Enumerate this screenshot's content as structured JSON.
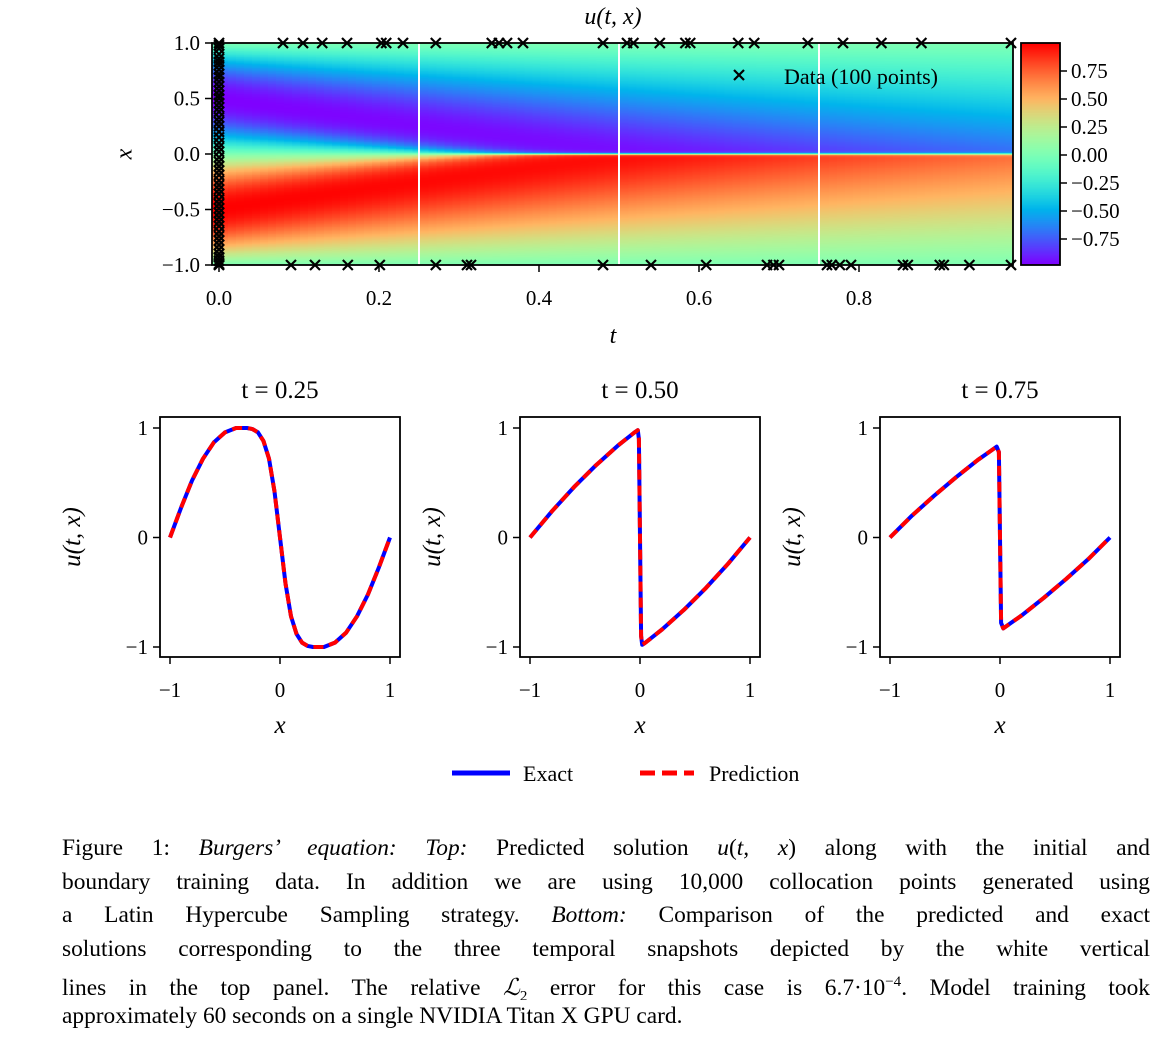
{
  "chart_data": [
    {
      "type": "heatmap",
      "title": "u(t, x)",
      "xlabel": "t",
      "ylabel": "x",
      "xlim": [
        0,
        0.99
      ],
      "ylim": [
        -1,
        1
      ],
      "xticks": [
        "0.0",
        "0.2",
        "0.4",
        "0.6",
        "0.8"
      ],
      "yticks": [
        "1.0",
        "0.5",
        "0.0",
        "−0.5",
        "−1.0"
      ],
      "colormap": "rainbow",
      "colorbar": {
        "range": [
          -1,
          1
        ],
        "ticks": [
          "0.75",
          "0.50",
          "0.25",
          "0.00",
          "−0.25",
          "−0.50",
          "−0.75"
        ]
      },
      "white_lines_t": [
        0.25,
        0.5,
        0.75
      ],
      "legend": {
        "label": "Data (100 points)",
        "position": "top-right"
      },
      "data_points": {
        "boundary_top_x1_t": [
          0,
          0.08,
          0.105,
          0.129,
          0.16,
          0.203,
          0.209,
          0.23,
          0.271,
          0.341,
          0.35,
          0.36,
          0.38,
          0.48,
          0.51,
          0.518,
          0.551,
          0.583,
          0.589,
          0.649,
          0.669,
          0.736,
          0.78,
          0.828,
          0.878,
          0.99
        ],
        "boundary_bottom_xm1_t": [
          0,
          0.09,
          0.12,
          0.161,
          0.201,
          0.271,
          0.31,
          0.315,
          0.48,
          0.54,
          0.609,
          0.685,
          0.693,
          0.7,
          0.76,
          0.766,
          0.776,
          0.79,
          0.855,
          0.861,
          0.901,
          0.906,
          0.938,
          0.99
        ],
        "initial_t0_x": [
          0.98,
          0.95,
          0.9,
          0.86,
          0.83,
          0.8,
          0.76,
          0.72,
          0.69,
          0.65,
          0.61,
          0.57,
          0.53,
          0.5,
          0.46,
          0.42,
          0.38,
          0.33,
          0.29,
          0.25,
          0.2,
          0.15,
          0.1,
          0.06,
          0.02,
          -0.03,
          -0.07,
          -0.11,
          -0.15,
          -0.19,
          -0.24,
          -0.28,
          -0.32,
          -0.36,
          -0.41,
          -0.45,
          -0.49,
          -0.53,
          -0.57,
          -0.61,
          -0.65,
          -0.7,
          -0.74,
          -0.78,
          -0.82,
          -0.86,
          -0.9,
          -0.93,
          -0.96,
          -0.99
        ]
      }
    },
    {
      "type": "line",
      "title": "t = 0.25",
      "xlabel": "x",
      "ylabel": "u(t, x)",
      "xlim": [
        -1.1,
        1.1
      ],
      "ylim": [
        -1.1,
        1.1
      ],
      "xticks": [
        "−1",
        "0",
        "1"
      ],
      "yticks": [
        "1",
        "0",
        "−1"
      ],
      "x": [
        -1,
        -0.9,
        -0.8,
        -0.7,
        -0.6,
        -0.5,
        -0.4,
        -0.3,
        -0.25,
        -0.2,
        -0.15,
        -0.1,
        -0.05,
        0,
        0.05,
        0.1,
        0.15,
        0.2,
        0.25,
        0.3,
        0.4,
        0.5,
        0.6,
        0.7,
        0.8,
        0.9,
        1
      ],
      "series": [
        {
          "name": "Exact",
          "values": [
            0,
            0.27,
            0.52,
            0.72,
            0.87,
            0.96,
            1.0,
            1.0,
            0.99,
            0.96,
            0.88,
            0.72,
            0.42,
            0,
            -0.42,
            -0.72,
            -0.88,
            -0.96,
            -0.99,
            -1.0,
            -1.0,
            -0.96,
            -0.87,
            -0.72,
            -0.52,
            -0.27,
            0
          ]
        },
        {
          "name": "Prediction",
          "values": [
            0,
            0.27,
            0.52,
            0.72,
            0.87,
            0.96,
            1.0,
            1.0,
            0.99,
            0.96,
            0.88,
            0.72,
            0.42,
            0,
            -0.42,
            -0.72,
            -0.88,
            -0.96,
            -0.99,
            -1.0,
            -1.0,
            -0.96,
            -0.87,
            -0.72,
            -0.52,
            -0.27,
            0
          ]
        }
      ]
    },
    {
      "type": "line",
      "title": "t = 0.50",
      "xlabel": "x",
      "ylabel": "u(t, x)",
      "xlim": [
        -1.1,
        1.1
      ],
      "ylim": [
        -1.1,
        1.1
      ],
      "xticks": [
        "−1",
        "0",
        "1"
      ],
      "yticks": [
        "1",
        "0",
        "−1"
      ],
      "x": [
        -1,
        -0.8,
        -0.6,
        -0.4,
        -0.2,
        -0.1,
        -0.05,
        -0.02,
        -0.01,
        0,
        0.01,
        0.02,
        0.05,
        0.1,
        0.2,
        0.4,
        0.6,
        0.8,
        1
      ],
      "series": [
        {
          "name": "Exact",
          "values": [
            0,
            0.24,
            0.46,
            0.66,
            0.84,
            0.92,
            0.96,
            0.98,
            0.9,
            0,
            -0.9,
            -0.98,
            -0.96,
            -0.92,
            -0.84,
            -0.66,
            -0.46,
            -0.24,
            0
          ]
        },
        {
          "name": "Prediction",
          "values": [
            0,
            0.24,
            0.46,
            0.66,
            0.84,
            0.92,
            0.96,
            0.98,
            0.9,
            0,
            -0.9,
            -0.98,
            -0.96,
            -0.92,
            -0.84,
            -0.66,
            -0.46,
            -0.24,
            0
          ]
        }
      ]
    },
    {
      "type": "line",
      "title": "t = 0.75",
      "xlabel": "x",
      "ylabel": "u(t, x)",
      "xlim": [
        -1.1,
        1.1
      ],
      "ylim": [
        -1.1,
        1.1
      ],
      "xticks": [
        "−1",
        "0",
        "1"
      ],
      "yticks": [
        "1",
        "0",
        "−1"
      ],
      "x": [
        -1,
        -0.8,
        -0.6,
        -0.4,
        -0.2,
        -0.1,
        -0.03,
        -0.01,
        0,
        0.01,
        0.03,
        0.1,
        0.2,
        0.4,
        0.6,
        0.8,
        1
      ],
      "series": [
        {
          "name": "Exact",
          "values": [
            0,
            0.2,
            0.38,
            0.55,
            0.71,
            0.78,
            0.83,
            0.78,
            0,
            -0.78,
            -0.83,
            -0.78,
            -0.71,
            -0.55,
            -0.38,
            -0.2,
            0
          ]
        },
        {
          "name": "Prediction",
          "values": [
            0,
            0.2,
            0.38,
            0.55,
            0.71,
            0.78,
            0.83,
            0.78,
            0,
            -0.78,
            -0.83,
            -0.78,
            -0.71,
            -0.55,
            -0.38,
            -0.2,
            0
          ]
        }
      ]
    }
  ],
  "legend": {
    "exact": "Exact",
    "prediction": "Prediction",
    "colors": {
      "exact": "#0000ff",
      "prediction": "#ff0000"
    }
  },
  "caption": {
    "line1": {
      "a": "Figure 1: ",
      "b": "Burgers’ equation: Top:",
      "c": " Predicted solution ",
      "d": "u",
      "e": "(",
      "f": "t, x",
      "g": ") along with the initial and"
    },
    "line2": "boundary training data. In addition we are using 10,000 collocation points generated using",
    "line3": {
      "a": "a Latin Hypercube Sampling strategy. ",
      "b": "Bottom:",
      "c": " Comparison of the predicted and exact"
    },
    "line4": "solutions corresponding to the three temporal snapshots depicted by the white vertical",
    "line5": {
      "a": "lines in the top panel. The relative ",
      "b": "ℒ",
      "c": "2",
      "d": " error for this case is 6.7·10",
      "e": "−4",
      "f": ". Model training took"
    },
    "line6": "approximately 60 seconds on a single NVIDIA Titan X GPU card."
  }
}
